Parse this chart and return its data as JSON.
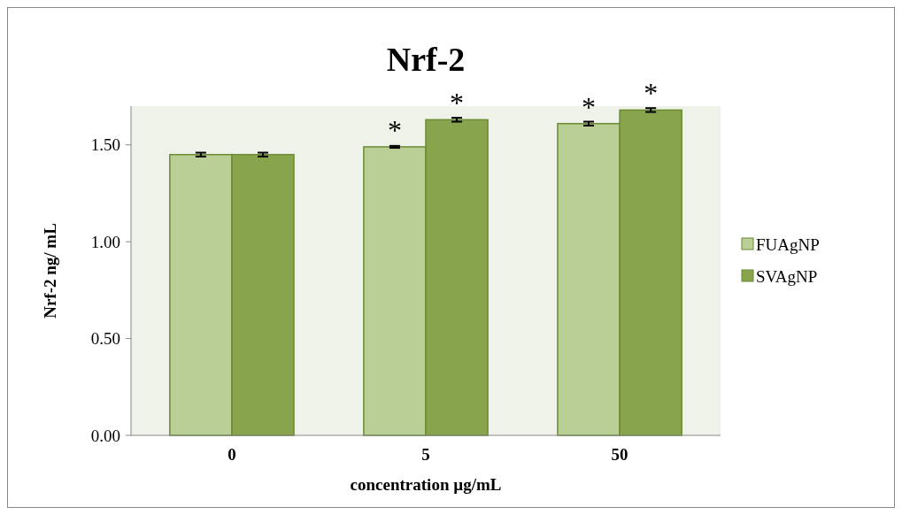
{
  "chart_data": {
    "type": "bar",
    "title": "Nrf-2",
    "xlabel": "concentration µg/mL",
    "ylabel": "Nrf-2 ng/ mL",
    "categories": [
      "0",
      "5",
      "50"
    ],
    "series": [
      {
        "name": "FUAgNP",
        "color": "#b9cf96",
        "values": [
          1.45,
          1.49,
          1.61
        ],
        "errors": [
          0.01,
          0.005,
          0.01
        ]
      },
      {
        "name": "SVAgNP",
        "color": "#88a54d",
        "values": [
          1.45,
          1.63,
          1.68
        ],
        "errors": [
          0.01,
          0.01,
          0.01
        ]
      }
    ],
    "ylim": [
      0,
      1.7
    ],
    "yticks": [
      {
        "value": 0,
        "label": "0.00"
      },
      {
        "value": 0.5,
        "label": "0.50"
      },
      {
        "value": 1,
        "label": "1.00"
      },
      {
        "value": 1.5,
        "label": "1.50"
      }
    ],
    "grid": false,
    "legend": "right",
    "annotations": [
      {
        "text": "*",
        "x": "5",
        "y": 1.49
      },
      {
        "text": "*",
        "x": "5",
        "y": 1.63
      },
      {
        "text": "*",
        "x": "50",
        "y": 1.61
      },
      {
        "text": "*",
        "x": "50",
        "y": 1.68
      }
    ]
  }
}
